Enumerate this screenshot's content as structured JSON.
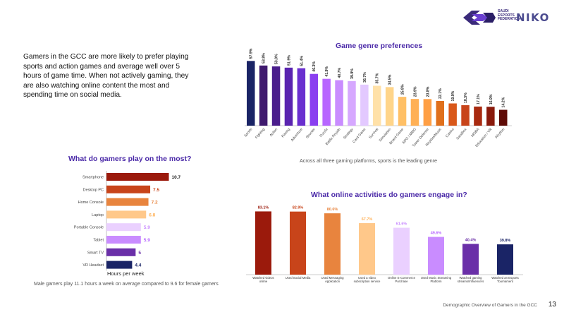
{
  "header": {
    "brand_primary": "SAUDI ESPORTS FEDERATION",
    "brand_secondary": "NIKO"
  },
  "intro_text": "Gamers in the GCC are more likely to prefer playing sports and action games and average well over 5 hours of game time. When not actively gaming, they are also watching online content the most and spending time on social media.",
  "footer": {
    "title": "Demographic Overview of Gamers in the GCC",
    "page": "13"
  },
  "chart_data": [
    {
      "id": "genre",
      "type": "bar",
      "title": "Game genre preferences",
      "caption": "Across all three gaming platforms, sports is the leading genre",
      "categories": [
        "Sports",
        "Fighting",
        "Action",
        "Racing",
        "Adventure",
        "Shooter",
        "Puzzle",
        "Battle Royale",
        "Strategy",
        "Card Game",
        "Survival",
        "Simulation",
        "Board Game",
        "RPG / MMO",
        "Tower Defense",
        "Rhythm/Music",
        "Casino",
        "Sandbox",
        "MOBA",
        "Education / VR",
        "Rhythm"
      ],
      "values": [
        57.9,
        53.8,
        53.0,
        51.9,
        51.4,
        46.3,
        41.9,
        40.7,
        39.9,
        36.7,
        35.7,
        34.5,
        25.8,
        23.9,
        23.8,
        22.1,
        19.9,
        18.3,
        17.1,
        16.9,
        14.2
      ],
      "labels": [
        "57.9%",
        "53.8%",
        "53.0%",
        "51.9%",
        "51.4%",
        "46.3%",
        "41.9%",
        "40.7%",
        "39.9%",
        "36.7%",
        "35.7%",
        "34.5%",
        "25.8%",
        "23.9%",
        "23.8%",
        "22.1%",
        "19.9%",
        "18.3%",
        "17.1%",
        "16.9%",
        "14.2%"
      ],
      "colors": [
        "#1a2466",
        "#3f1a6e",
        "#4a1d8c",
        "#5a24b0",
        "#6a2fcf",
        "#8a3ff0",
        "#b766ff",
        "#c98cff",
        "#d6a8ff",
        "#e3c9ff",
        "#ffe1a8",
        "#ffd58a",
        "#ffc066",
        "#ffb055",
        "#ff9f44",
        "#e0701c",
        "#d9581a",
        "#c8441a",
        "#a82a10",
        "#8a1a0c",
        "#5e0b06"
      ],
      "ylim": [
        0,
        60
      ]
    },
    {
      "id": "devices",
      "type": "bar",
      "orientation": "horizontal",
      "title": "What do gamers play on the most?",
      "xlabel": "Hours per week",
      "caption": "Male gamers play 11.1 hours a week on average compared to 9.6 for female gamers",
      "categories": [
        "Smartphone",
        "Desktop PC",
        "Home Console",
        "Laptop",
        "Portable Console",
        "Tablet",
        "Smart TV",
        "VR Headset"
      ],
      "values": [
        10.7,
        7.5,
        7.2,
        6.8,
        5.9,
        5.9,
        5,
        4.4
      ],
      "labels": [
        "10.7",
        "7.5",
        "7.2",
        "6.8",
        "5.9",
        "5.9",
        "5",
        "4.4"
      ],
      "colors": [
        "#9b1a0c",
        "#c8441a",
        "#e8843e",
        "#ffc88a",
        "#ead0ff",
        "#c98cff",
        "#6a2fa8",
        "#1a2466"
      ],
      "label_colors": [
        "#1a1a1a",
        "#c8441a",
        "#e8843e",
        "#ffb055",
        "#c98cff",
        "#b766ff",
        "#6a2fa8",
        "#1a2466"
      ],
      "xlim": [
        0,
        11
      ]
    },
    {
      "id": "activities",
      "type": "bar",
      "title": "What online activities do gamers engage in?",
      "categories": [
        "Watched videos online",
        "Used Social Media",
        "Used Messaging Application",
        "Used a video subscription service",
        "Online E-Commerce Purchase",
        "Used Music Streaming Platform",
        "Watched gaming streams/Influencers",
        "Watched an Esports Tournament"
      ],
      "values": [
        83.1,
        82.9,
        80.6,
        67.7,
        61.6,
        49.6,
        40.4,
        39.8
      ],
      "labels": [
        "83.1%",
        "82.9%",
        "80.6%",
        "67.7%",
        "61.6%",
        "49.6%",
        "40.4%",
        "39.8%"
      ],
      "colors": [
        "#9b1a0c",
        "#c8441a",
        "#e8843e",
        "#ffc88a",
        "#ead0ff",
        "#c98cff",
        "#6a2fa8",
        "#1a2466"
      ],
      "label_colors": [
        "#9b1a0c",
        "#c8441a",
        "#e8843e",
        "#ffb055",
        "#c98cff",
        "#b766ff",
        "#6a2fa8",
        "#1a2466"
      ],
      "ylim": [
        0,
        90
      ]
    }
  ]
}
